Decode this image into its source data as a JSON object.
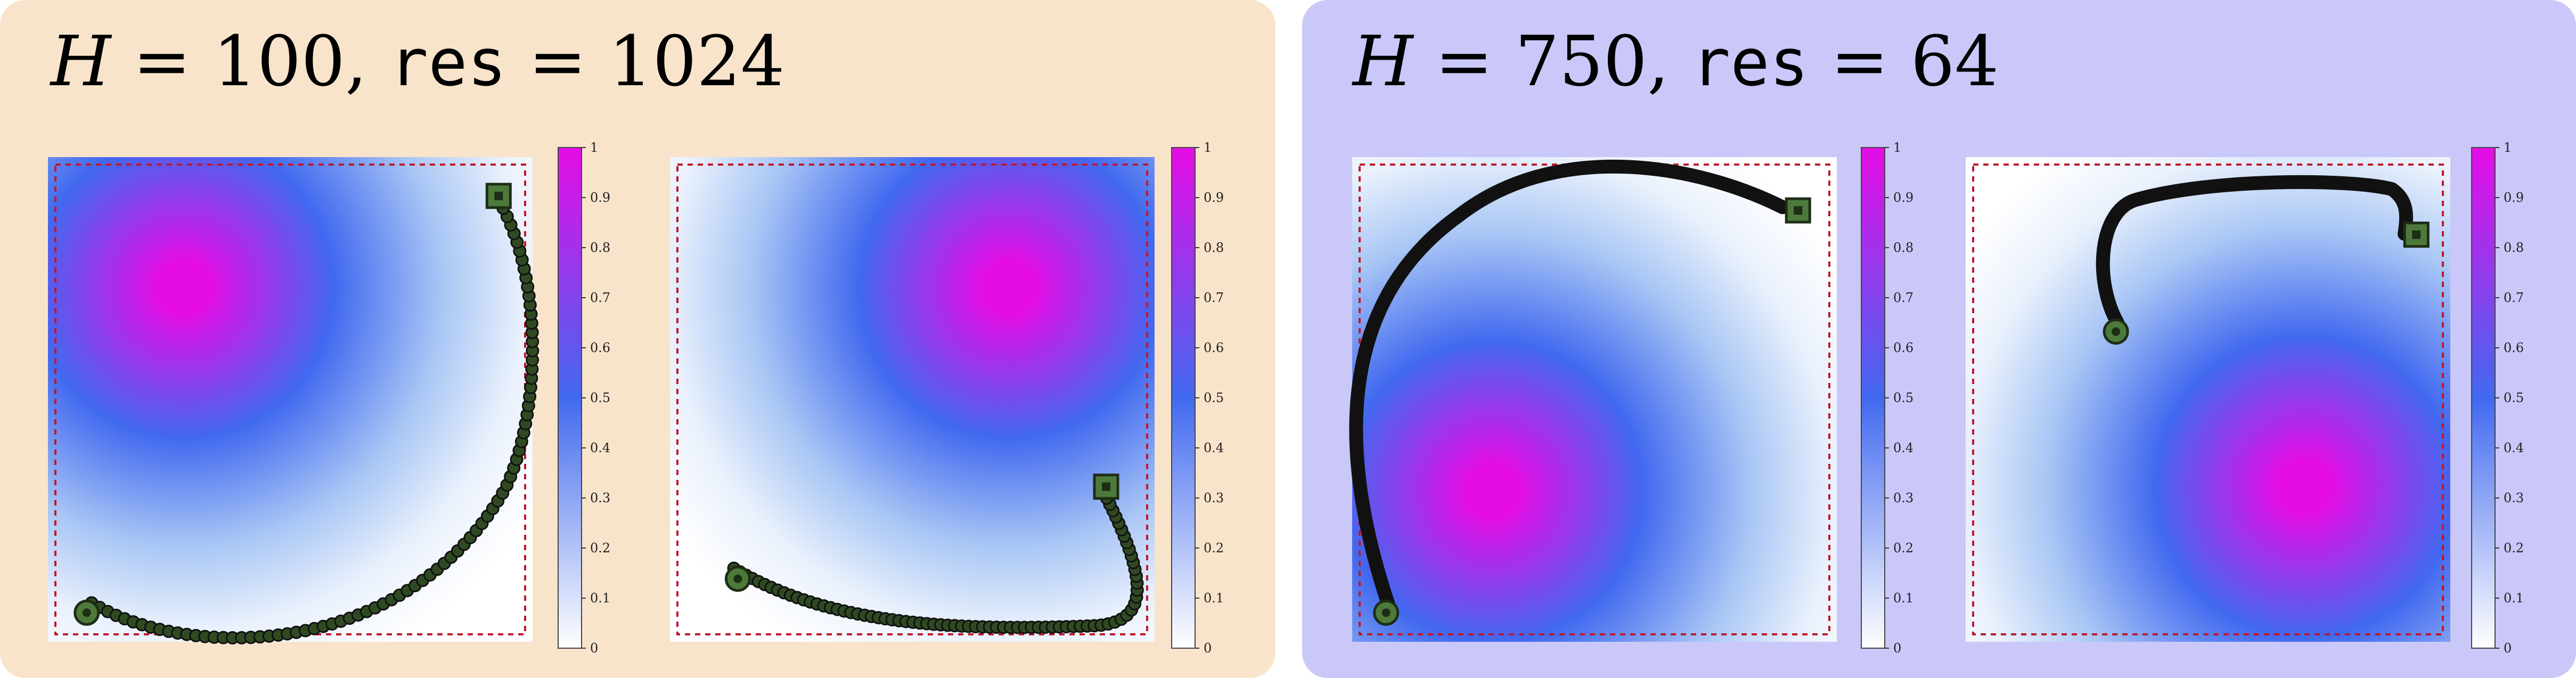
{
  "panels": [
    {
      "title": {
        "var": "H",
        "eq1": " = ",
        "h_value": "100",
        "sep": ", ",
        "res_name": "res",
        "eq2": " = ",
        "res_value": "1024"
      },
      "plots": [
        {
          "peak": [
            0.28,
            0.73
          ],
          "path_style": "dotted",
          "start": [
            0.08,
            0.06
          ],
          "end": [
            0.93,
            0.92
          ]
        },
        {
          "peak": [
            0.7,
            0.73
          ],
          "path_style": "dotted",
          "start": [
            0.14,
            0.13
          ],
          "end": [
            0.9,
            0.32
          ]
        }
      ]
    },
    {
      "title": {
        "var": "H",
        "eq1": " = ",
        "h_value": "750",
        "sep": ", ",
        "res_name": "res",
        "eq2": " = ",
        "res_value": "64"
      },
      "plots": [
        {
          "peak": [
            0.29,
            0.31
          ],
          "path_style": "smooth",
          "start": [
            0.07,
            0.06
          ],
          "end": [
            0.92,
            0.89
          ]
        },
        {
          "peak": [
            0.7,
            0.32
          ],
          "path_style": "smooth",
          "start": [
            0.31,
            0.64
          ],
          "end": [
            0.93,
            0.84
          ]
        }
      ]
    }
  ],
  "colorbar_ticks": [
    "0",
    "0.1",
    "0.2",
    "0.3",
    "0.4",
    "0.5",
    "0.6",
    "0.7",
    "0.8",
    "0.9",
    "1"
  ],
  "colors": {
    "heat_low": "#ffffff",
    "heat_mid": "#4169ef",
    "heat_high": "#e60ce6",
    "domain_border": "#c0182a",
    "marker_fill": "#4d7a3a",
    "path": "#111111"
  }
}
